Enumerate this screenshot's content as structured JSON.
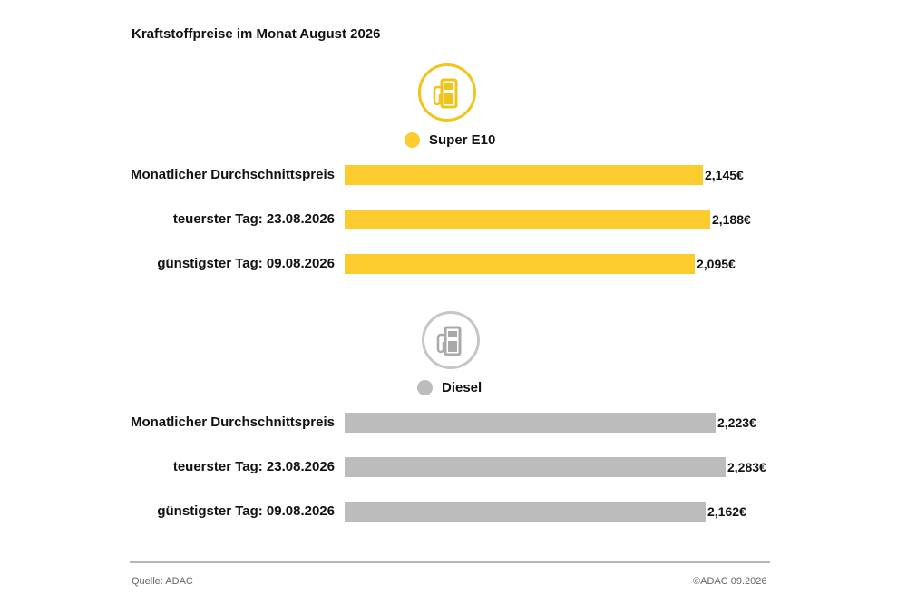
{
  "title": "Kraftstoffpreise im Monat August 2026",
  "colors": {
    "super_e10": "#fccb2e",
    "diesel": "#bcbcbc",
    "ring_super": "#f0c419",
    "ring_diesel": "#c6c6c6"
  },
  "icons": {
    "super_e10": "fuel-pump-icon",
    "diesel": "fuel-pump-icon"
  },
  "chart_data": {
    "type": "bar",
    "orientation": "horizontal",
    "unit": "€",
    "categories": [
      "Monatlicher Durchschnittspreis",
      "teuerster Tag: 23.08.2026",
      "günstigster Tag: 09.08.2026"
    ],
    "series": [
      {
        "name": "Super E10",
        "values": [
          2.145,
          2.188,
          2.095
        ],
        "value_labels": [
          "2,145€",
          "2,188€",
          "2,095€"
        ]
      },
      {
        "name": "Diesel",
        "values": [
          2.223,
          2.283,
          2.162
        ],
        "value_labels": [
          "2,223€",
          "2,283€",
          "2,162€"
        ]
      }
    ]
  },
  "footer": {
    "source": "Quelle: ADAC",
    "copyright": "©ADAC 09.2026"
  }
}
